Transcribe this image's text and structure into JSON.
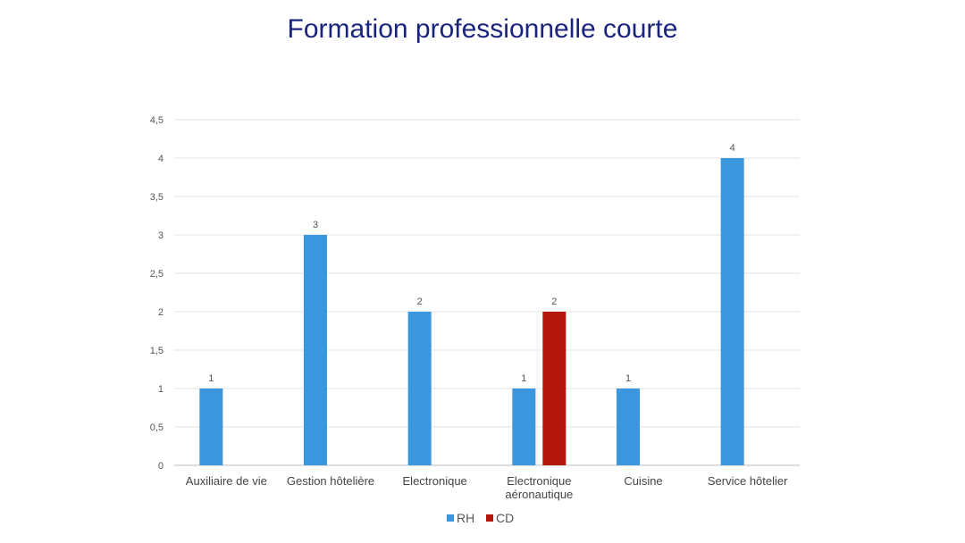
{
  "slide": {
    "title": "Formation professionnelle courte"
  },
  "chart_data": {
    "type": "bar",
    "title": "Formation professionnelle courte",
    "xlabel": "",
    "ylabel": "",
    "categories": [
      [
        "Auxiliaire de vie"
      ],
      [
        "Gestion hôtelière"
      ],
      [
        "Electronique"
      ],
      [
        "Electronique",
        "aéronautique"
      ],
      [
        "Cuisine"
      ],
      [
        "Service hôtelier"
      ]
    ],
    "series": [
      {
        "name": "RH",
        "color": "#3a96dd",
        "values": [
          1,
          3,
          2,
          1,
          1,
          4
        ]
      },
      {
        "name": "CD",
        "color": "#b3160b",
        "values": [
          null,
          null,
          null,
          2,
          null,
          null
        ]
      }
    ],
    "ylim": [
      0,
      4.5
    ],
    "yticks": [
      "0",
      "0,5",
      "1",
      "1,5",
      "2",
      "2,5",
      "3",
      "3,5",
      "4",
      "4,5"
    ],
    "grid": true,
    "legend": "bottom"
  }
}
